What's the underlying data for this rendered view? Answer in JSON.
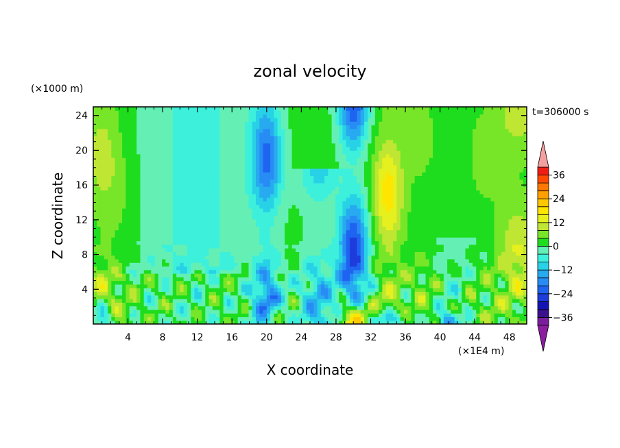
{
  "chart_data": {
    "type": "heatmap",
    "title": "zonal velocity",
    "xlabel": "X coordinate",
    "ylabel": "Z coordinate",
    "x_unit": "(×1E4 m)",
    "y_unit": "(×1000 m)",
    "time_label": "t=306000 s",
    "xlim": [
      0,
      50
    ],
    "ylim": [
      0,
      25
    ],
    "x_ticks": [
      4,
      8,
      12,
      16,
      20,
      24,
      28,
      32,
      36,
      40,
      44,
      48
    ],
    "y_ticks": [
      4,
      8,
      12,
      16,
      20,
      24
    ],
    "colorbar": {
      "tick_labels": [
        "36",
        "24",
        "12",
        "0",
        "−12",
        "−24",
        "−36"
      ],
      "tick_values": [
        36,
        24,
        12,
        0,
        -12,
        -24,
        -36
      ],
      "levels": [
        -40,
        -36,
        -32,
        -28,
        -24,
        -20,
        -16,
        -12,
        -8,
        -4,
        0,
        4,
        8,
        12,
        16,
        20,
        24,
        28,
        32,
        36,
        40
      ],
      "colors": [
        "#7a1e9e",
        "#3a108c",
        "#1414b4",
        "#1e3cdc",
        "#1e64f0",
        "#288cf5",
        "#28aaf0",
        "#28d2e6",
        "#3cf0dc",
        "#64f0b4",
        "#1edc1e",
        "#78e628",
        "#bee632",
        "#e6f01e",
        "#ffe600",
        "#ffc800",
        "#ffa000",
        "#ff7800",
        "#ff4b00",
        "#ee1e14",
        "#dc1414"
      ],
      "under_color": "#8c1ea0",
      "over_color": "#f5a0a0"
    },
    "field_description": "zonal velocity (m/s) over X-Z plane; vertical streaks with strong negative cores near x=20 and x=30 and positive core near x=34",
    "features": [
      {
        "x": 1,
        "z_top": 25,
        "sign": 1,
        "amp": 8
      },
      {
        "x": 3,
        "z_top": 25,
        "sign": 1,
        "amp": 3
      },
      {
        "x": 20,
        "z_top": 25,
        "sign": -1,
        "amp": 22
      },
      {
        "x": 26,
        "z_top": 18,
        "sign": -1,
        "amp": 14
      },
      {
        "x": 30,
        "z_top": 25,
        "sign": -1,
        "amp": 28
      },
      {
        "x": 34,
        "z_top": 25,
        "sign": 1,
        "amp": 16
      },
      {
        "x": 38,
        "z_top": 25,
        "sign": 1,
        "amp": 4
      },
      {
        "x": 45,
        "z_top": 25,
        "sign": 1,
        "amp": 5
      },
      {
        "x": 49,
        "z_top": 25,
        "sign": 1,
        "amp": 10
      }
    ]
  }
}
